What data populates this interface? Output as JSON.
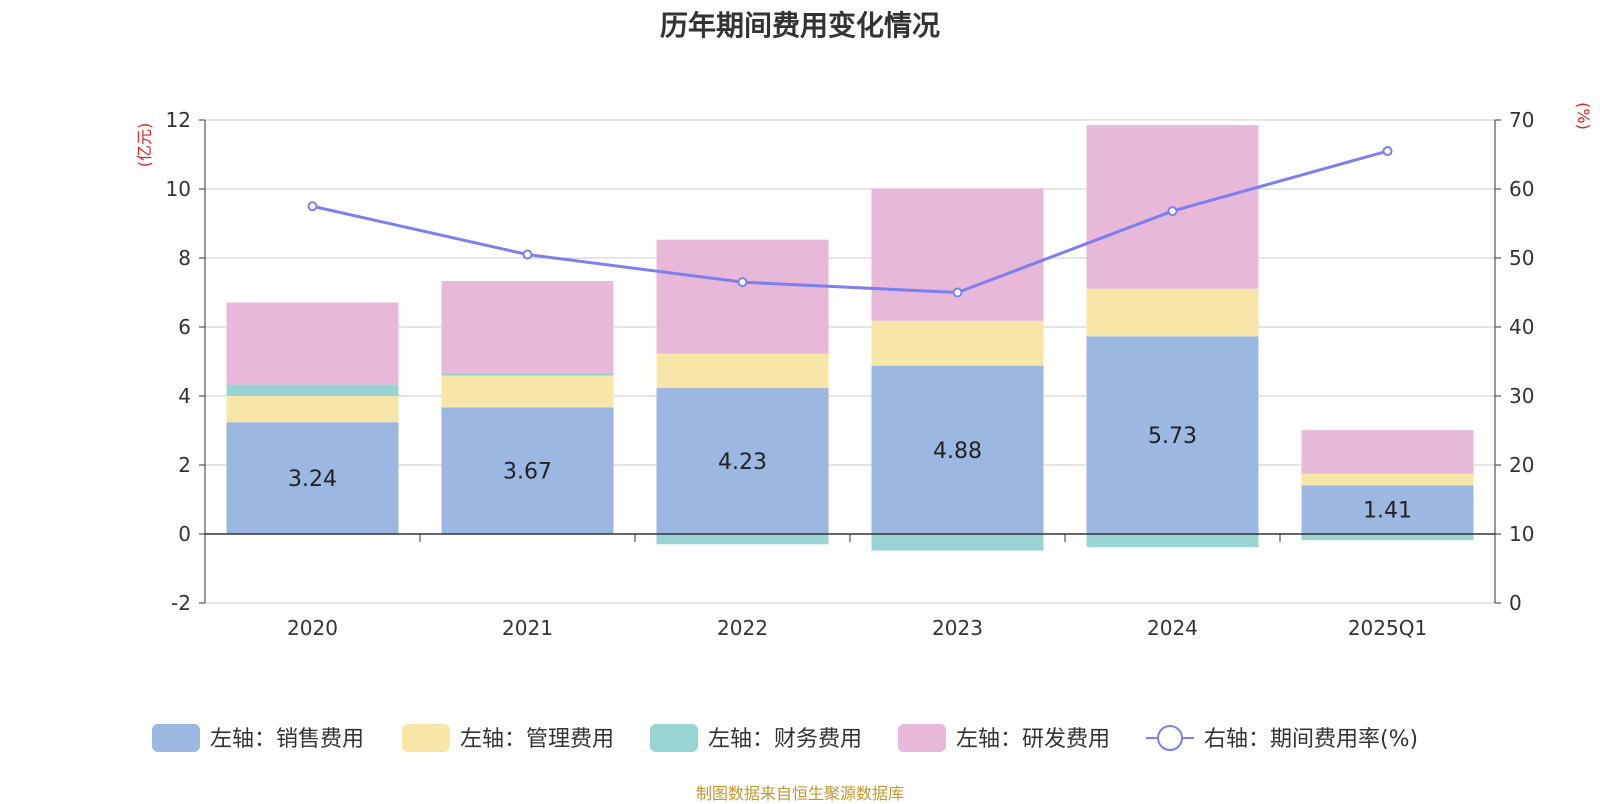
{
  "chart_data": {
    "type": "bar",
    "title": "历年期间费用变化情况",
    "categories": [
      "2020",
      "2021",
      "2022",
      "2023",
      "2024",
      "2025Q1"
    ],
    "left_axis": {
      "unit": "(亿元)",
      "ylim": [
        -2,
        12
      ],
      "ticks": [
        -2,
        0,
        2,
        4,
        6,
        8,
        10,
        12
      ]
    },
    "right_axis": {
      "unit": "(%)",
      "ylim": [
        0,
        70
      ],
      "ticks": [
        0,
        10,
        20,
        30,
        40,
        50,
        60,
        70
      ]
    },
    "series": [
      {
        "name": "左轴：销售费用",
        "kind": "bar",
        "color": "#9bb7e2",
        "values": [
          3.24,
          3.67,
          4.23,
          4.88,
          5.73,
          1.41
        ],
        "labels": [
          "3.24",
          "3.67",
          "4.23",
          "4.88",
          "5.73",
          "1.41"
        ]
      },
      {
        "name": "左轴：管理费用",
        "kind": "bar",
        "color": "#f8e6a8",
        "values": [
          0.76,
          0.92,
          1.0,
          1.3,
          1.38,
          0.34
        ]
      },
      {
        "name": "左轴：财务费用",
        "kind": "bar",
        "color": "#98d4d4",
        "values": [
          0.33,
          0.08,
          -0.3,
          -0.48,
          -0.38,
          -0.18
        ]
      },
      {
        "name": "左轴：研发费用",
        "kind": "bar",
        "color": "#e7b8d8",
        "values": [
          2.38,
          2.66,
          3.3,
          3.84,
          4.74,
          1.26
        ]
      },
      {
        "name": "右轴：期间费用率(%)",
        "kind": "line",
        "color": "#7b7ff0",
        "values": [
          57.5,
          50.5,
          46.5,
          45.0,
          56.8,
          65.5
        ]
      }
    ],
    "legend_position": "bottom",
    "grid": true
  },
  "source_note": "制图数据来自恒生聚源数据库"
}
